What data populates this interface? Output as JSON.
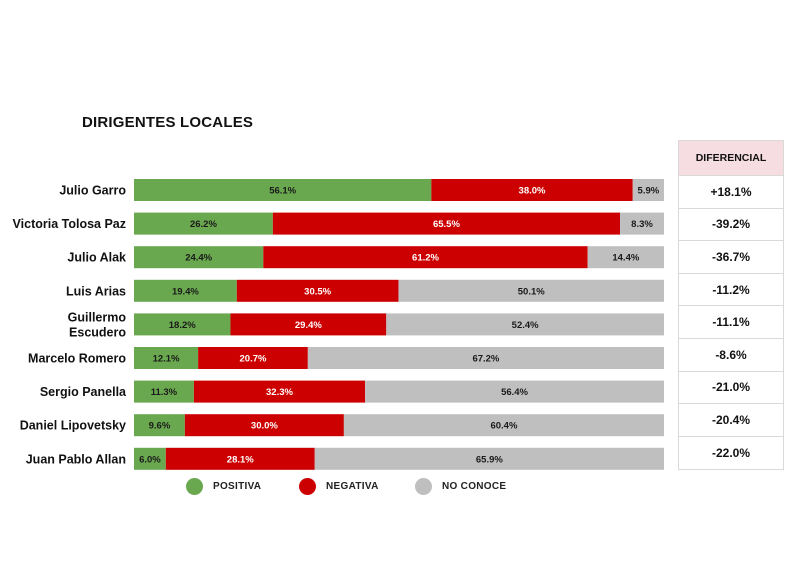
{
  "title": "DIRIGENTES LOCALES",
  "diferencial": {
    "header": "DIFERENCIAL",
    "values": [
      "+18.1%",
      "-39.2%",
      "-36.7%",
      "-11.2%",
      "-11.1%",
      "-8.6%",
      "-21.0%",
      "-20.4%",
      "-22.0%"
    ]
  },
  "legend": [
    {
      "label": "POSITIVA",
      "color": "#6aa84f"
    },
    {
      "label": "NEGATIVA",
      "color": "#cc0000"
    },
    {
      "label": "NO CONOCE",
      "color": "#bfbfbf"
    }
  ],
  "chart_data": {
    "type": "bar",
    "orientation": "horizontal",
    "stacked": "100%",
    "title": "DIRIGENTES LOCALES",
    "categories": [
      "Julio Garro",
      "Victoria Tolosa Paz",
      "Julio Alak",
      "Luis Arias",
      "Guillermo Escudero",
      "Marcelo Romero",
      "Sergio Panella",
      "Daniel Lipovetsky",
      "Juan Pablo Allan"
    ],
    "series": [
      {
        "name": "POSITIVA",
        "color": "#6aa84f",
        "values": [
          56.1,
          26.2,
          24.4,
          19.4,
          18.2,
          12.1,
          11.3,
          9.6,
          6.0
        ],
        "labels": [
          "56.1%",
          "26.2%",
          "24.4%",
          "19.4%",
          "18.2%",
          "12.1%",
          "11.3%",
          "9.6%",
          "6.0%"
        ]
      },
      {
        "name": "NEGATIVA",
        "color": "#cc0000",
        "values": [
          38.0,
          65.5,
          61.2,
          30.5,
          29.4,
          20.7,
          32.3,
          30.0,
          28.1
        ],
        "labels": [
          "38.0%",
          "65.5%",
          "61.2%",
          "30.5%",
          "29.4%",
          "20.7%",
          "32.3%",
          "30.0%",
          "28.1%"
        ]
      },
      {
        "name": "NO CONOCE",
        "color": "#bfbfbf",
        "values": [
          5.9,
          8.3,
          14.4,
          50.1,
          52.4,
          67.2,
          56.4,
          60.4,
          65.9
        ],
        "labels": [
          "5.9%",
          "8.3%",
          "14.4%",
          "50.1%",
          "52.4%",
          "67.2%",
          "56.4%",
          "60.4%",
          "65.9%"
        ]
      }
    ],
    "legend_position": "bottom",
    "grid": false
  }
}
